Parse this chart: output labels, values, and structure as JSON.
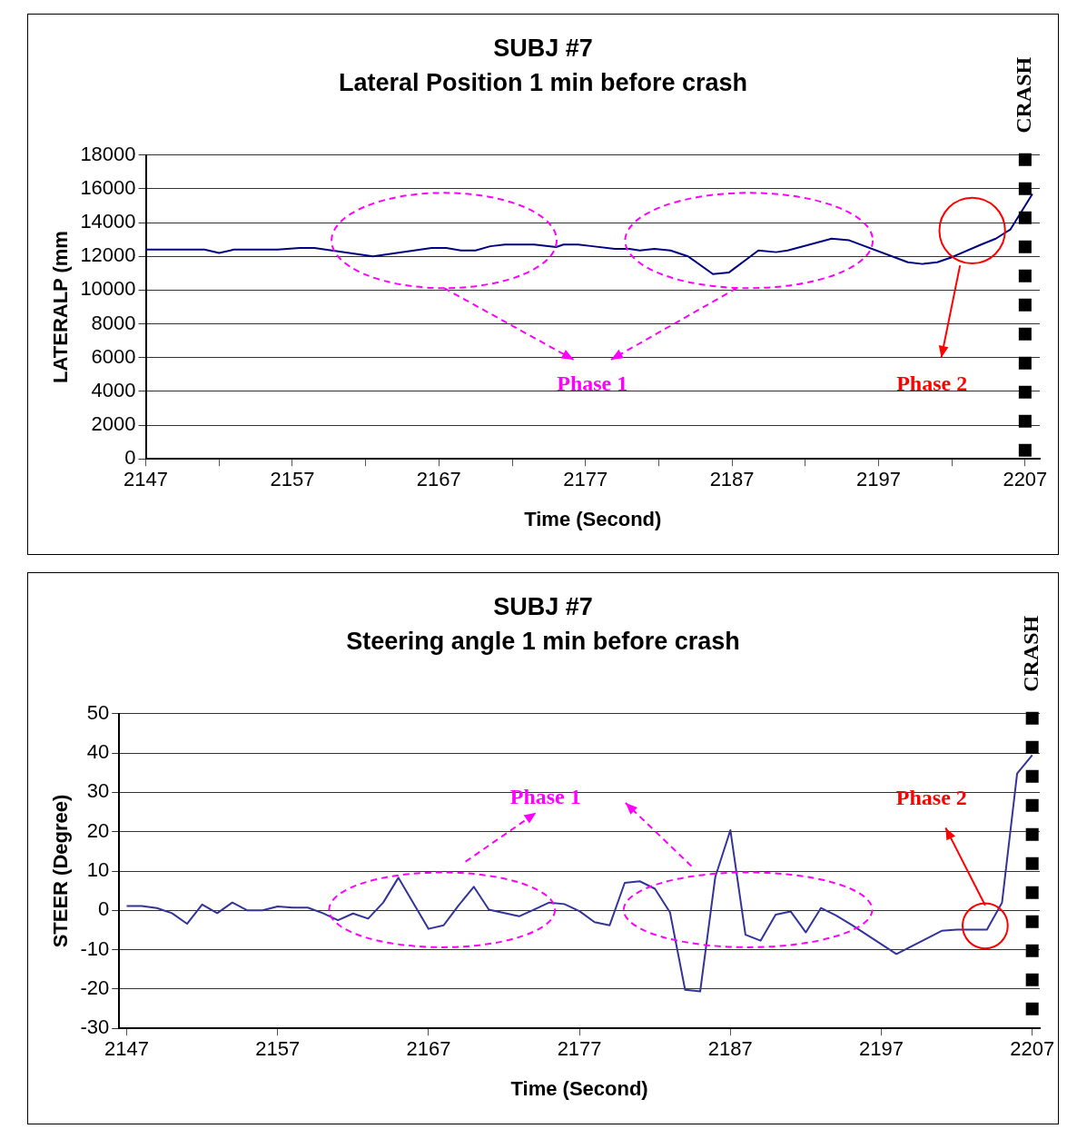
{
  "chart_data": [
    {
      "type": "line",
      "title": "SUBJ #7",
      "subtitle": "Lateral Position 1 min before crash",
      "xlabel": "Time (Second)",
      "ylabel": "LATERALP (mm",
      "xlim": [
        2147,
        2208
      ],
      "xticks": [
        2147,
        {
          "value": 2152,
          "label": null
        },
        2157,
        {
          "value": 2162,
          "label": null
        },
        2167,
        {
          "value": 2172,
          "label": null
        },
        2177,
        {
          "value": 2182,
          "label": null
        },
        2187,
        {
          "value": 2192,
          "label": null
        },
        2197,
        {
          "value": 2202,
          "label": null
        },
        2207
      ],
      "ylim": [
        0,
        18000
      ],
      "yticks": [
        0,
        2000,
        4000,
        6000,
        8000,
        10000,
        12000,
        14000,
        16000,
        18000
      ],
      "grid": "y",
      "legend": false,
      "marker": "none",
      "x": [
        2147,
        2151,
        2152,
        2153,
        2156,
        2157.5,
        2158.5,
        2162.5,
        2166.5,
        2167.5,
        2168.5,
        2169.5,
        2170.5,
        2171.5,
        2173.5,
        2175,
        2175.5,
        2176.5,
        2177.5,
        2179,
        2180,
        2180.7,
        2181.7,
        2182.8,
        2184,
        2185.7,
        2186.8,
        2188.8,
        2190,
        2190.8,
        2193.8,
        2195,
        2199,
        2200,
        2201,
        2202,
        2204,
        2205,
        2206,
        2207.5
      ],
      "series": [
        {
          "color": "#000080",
          "values": [
            12400,
            12400,
            12200,
            12400,
            12400,
            12500,
            12500,
            12000,
            12500,
            12500,
            12350,
            12350,
            12600,
            12700,
            12700,
            12550,
            12700,
            12700,
            12600,
            12450,
            12450,
            12350,
            12450,
            12350,
            12000,
            10950,
            11050,
            12350,
            12250,
            12350,
            13050,
            12950,
            11650,
            11550,
            11650,
            11950,
            12700,
            13050,
            13600,
            15700
          ]
        }
      ],
      "ref_lines": [
        {
          "axis": "x",
          "value": 2207,
          "label": "CRASH",
          "color": "#000000",
          "line_style": "dotted"
        }
      ],
      "annotations": [
        "Phase 1",
        "Phase 2"
      ]
    },
    {
      "type": "line",
      "title": "SUBJ #7",
      "subtitle": "Steering angle 1 min before crash",
      "xlabel": "Time (Second)",
      "ylabel": "STEER (Degree)",
      "xlim": [
        2146.5,
        2207.5
      ],
      "xticks": [
        2147,
        2157,
        2167,
        2177,
        2187,
        2197,
        2207
      ],
      "ylim": [
        -30,
        50
      ],
      "yticks": [
        -30,
        -20,
        -10,
        0,
        10,
        20,
        30,
        40,
        50
      ],
      "grid": "y",
      "legend": false,
      "marker": "none",
      "x": [
        2147,
        2148,
        2149,
        2150,
        2151,
        2152,
        2153,
        2154,
        2155,
        2156,
        2157,
        2158,
        2159,
        2160,
        2161,
        2162,
        2163,
        2164,
        2165,
        2167,
        2168,
        2169,
        2170,
        2171,
        2173,
        2174,
        2175,
        2176,
        2177,
        2178,
        2179,
        2180,
        2181,
        2182,
        2183,
        2184,
        2185,
        2186,
        2187,
        2188,
        2189,
        2190,
        2191,
        2192,
        2193,
        2194,
        2195,
        2198,
        2201,
        2202,
        2204,
        2205,
        2206,
        2207
      ],
      "series": [
        {
          "color": "#333399",
          "values": [
            1.1,
            1.1,
            0.6,
            -0.7,
            -3.4,
            1.5,
            -0.7,
            2.0,
            0,
            0,
            1.0,
            0.7,
            0.7,
            -0.7,
            -2.5,
            -0.8,
            -2.1,
            2.0,
            8.3,
            -4.7,
            -3.8,
            1.3,
            6.0,
            0.2,
            -1.5,
            0.2,
            2.0,
            1.6,
            -0.2,
            -3.0,
            -3.8,
            7.0,
            7.4,
            5.5,
            -0.5,
            -20.2,
            -20.6,
            8.5,
            20.4,
            -6.2,
            -7.7,
            -1.1,
            -0.3,
            -5.6,
            0.6,
            -1.3,
            -3.6,
            -11.1,
            -5.2,
            -4.9,
            -4.9,
            2.0,
            34.8,
            39.5
          ]
        }
      ],
      "ref_lines": [
        {
          "axis": "x",
          "value": 2207,
          "label": "CRASH",
          "color": "#000000",
          "line_style": "dotted"
        }
      ],
      "annotations": [
        "Phase 1",
        "Phase 2"
      ]
    }
  ]
}
